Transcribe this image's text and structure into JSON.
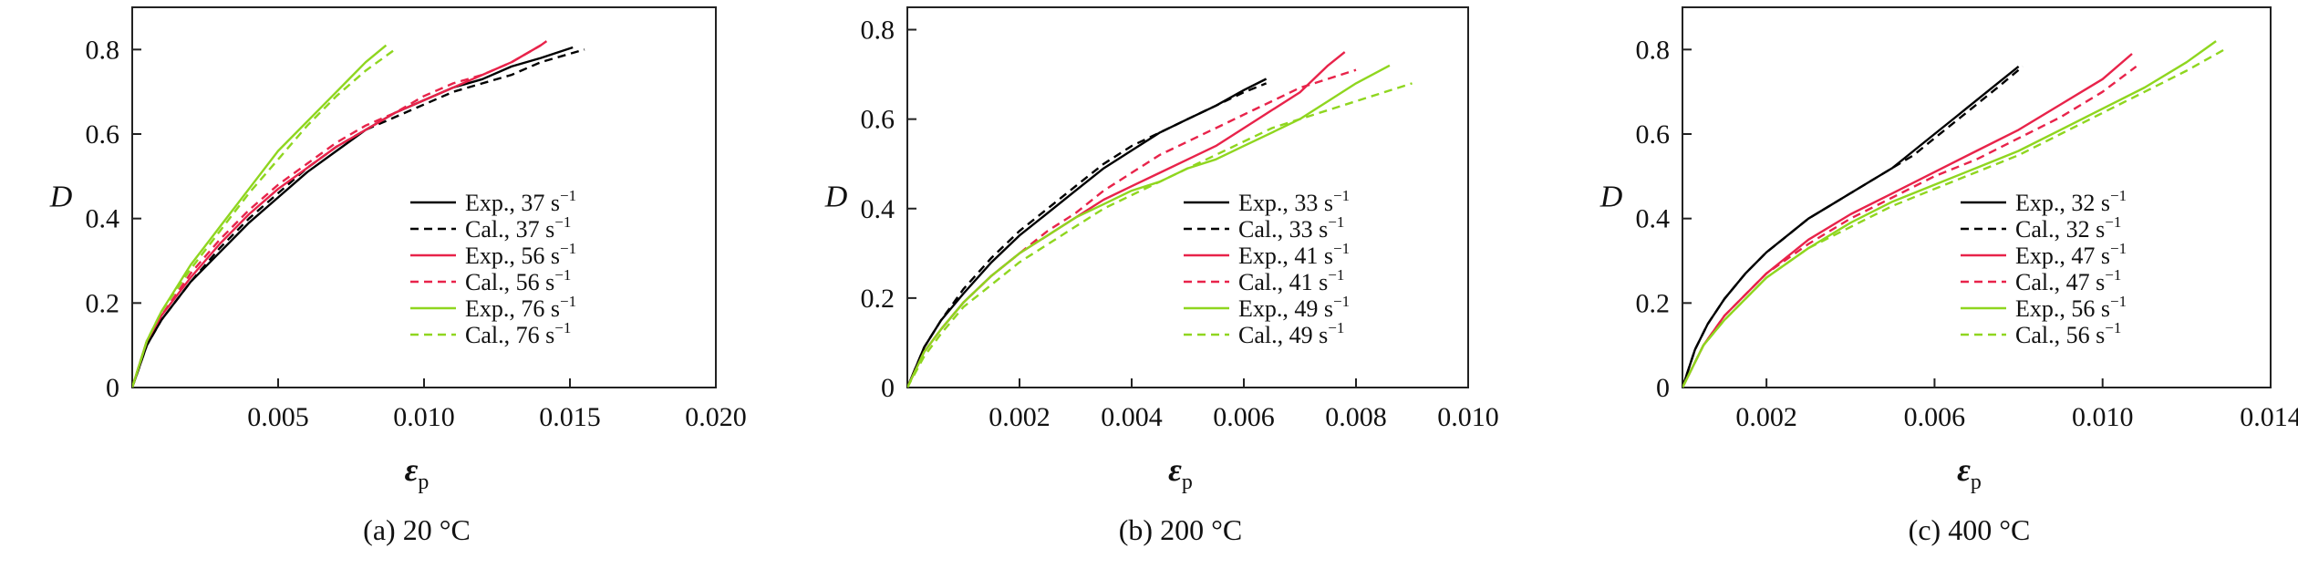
{
  "chart_data": [
    {
      "type": "line",
      "caption": "(a) 20 °C",
      "xlabel_main": "ε",
      "xlabel_sub": "p",
      "ylabel": "D",
      "xlim": [
        0,
        0.02
      ],
      "ylim": [
        0,
        0.9
      ],
      "xticks": [
        0.005,
        0.01,
        0.015,
        0.02
      ],
      "xtick_labels": [
        "0.005",
        "0.010",
        "0.015",
        "0.020"
      ],
      "yticks": [
        0,
        0.2,
        0.4,
        0.6,
        0.8
      ],
      "ytick_labels": [
        "0",
        "0.2",
        "0.4",
        "0.6",
        "0.8"
      ],
      "grid": false,
      "legend_position": "right",
      "series": [
        {
          "name": "Exp., 37 s",
          "sup": "−1",
          "color": "#000000",
          "dashed": false,
          "x": [
            0,
            0.0005,
            0.001,
            0.002,
            0.003,
            0.004,
            0.005,
            0.006,
            0.007,
            0.008,
            0.009,
            0.01,
            0.011,
            0.012,
            0.013,
            0.014,
            0.0151
          ],
          "y": [
            0,
            0.1,
            0.16,
            0.25,
            0.32,
            0.39,
            0.45,
            0.51,
            0.56,
            0.61,
            0.65,
            0.68,
            0.71,
            0.73,
            0.76,
            0.78,
            0.805
          ]
        },
        {
          "name": "Cal., 37 s",
          "sup": "−1",
          "color": "#000000",
          "dashed": true,
          "x": [
            0,
            0.0005,
            0.001,
            0.002,
            0.003,
            0.004,
            0.005,
            0.006,
            0.007,
            0.008,
            0.009,
            0.01,
            0.011,
            0.012,
            0.013,
            0.014,
            0.0155
          ],
          "y": [
            0,
            0.1,
            0.16,
            0.25,
            0.33,
            0.4,
            0.46,
            0.52,
            0.57,
            0.61,
            0.64,
            0.67,
            0.7,
            0.72,
            0.74,
            0.77,
            0.8
          ]
        },
        {
          "name": "Exp., 56 s",
          "sup": "−1",
          "color": "#e8234a",
          "dashed": false,
          "x": [
            0,
            0.0005,
            0.001,
            0.002,
            0.003,
            0.004,
            0.005,
            0.006,
            0.007,
            0.008,
            0.009,
            0.01,
            0.011,
            0.012,
            0.013,
            0.014,
            0.0142
          ],
          "y": [
            0,
            0.11,
            0.17,
            0.26,
            0.34,
            0.41,
            0.47,
            0.52,
            0.57,
            0.61,
            0.65,
            0.68,
            0.71,
            0.74,
            0.77,
            0.81,
            0.82
          ]
        },
        {
          "name": "Cal., 56 s",
          "sup": "−1",
          "color": "#e8234a",
          "dashed": true,
          "x": [
            0,
            0.0005,
            0.001,
            0.002,
            0.003,
            0.004,
            0.005,
            0.006,
            0.007,
            0.008,
            0.009,
            0.01,
            0.011,
            0.012,
            0.013,
            0.014
          ],
          "y": [
            0,
            0.11,
            0.17,
            0.27,
            0.35,
            0.42,
            0.48,
            0.53,
            0.58,
            0.62,
            0.65,
            0.69,
            0.72,
            0.74,
            0.77,
            0.81
          ]
        },
        {
          "name": "Exp., 76 s",
          "sup": "−1",
          "color": "#8fd61f",
          "dashed": false,
          "x": [
            0,
            0.0005,
            0.001,
            0.002,
            0.003,
            0.004,
            0.005,
            0.006,
            0.007,
            0.008,
            0.0087
          ],
          "y": [
            0,
            0.11,
            0.18,
            0.29,
            0.38,
            0.47,
            0.56,
            0.63,
            0.7,
            0.77,
            0.81
          ]
        },
        {
          "name": "Cal., 76 s",
          "sup": "−1",
          "color": "#8fd61f",
          "dashed": true,
          "x": [
            0,
            0.0005,
            0.001,
            0.002,
            0.003,
            0.004,
            0.005,
            0.006,
            0.007,
            0.008,
            0.009
          ],
          "y": [
            0,
            0.11,
            0.18,
            0.28,
            0.37,
            0.46,
            0.54,
            0.62,
            0.69,
            0.75,
            0.8
          ]
        }
      ]
    },
    {
      "type": "line",
      "caption": "(b) 200 °C",
      "xlabel_main": "ε",
      "xlabel_sub": "p",
      "ylabel": "D",
      "xlim": [
        0,
        0.01
      ],
      "ylim": [
        0,
        0.85
      ],
      "xticks": [
        0.002,
        0.004,
        0.006,
        0.008,
        0.01
      ],
      "xtick_labels": [
        "0.002",
        "0.004",
        "0.006",
        "0.008",
        "0.010"
      ],
      "yticks": [
        0,
        0.2,
        0.4,
        0.6,
        0.8
      ],
      "ytick_labels": [
        "0",
        "0.2",
        "0.4",
        "0.6",
        "0.8"
      ],
      "grid": false,
      "legend_position": "right",
      "series": [
        {
          "name": "Exp., 33 s",
          "sup": "−1",
          "color": "#000000",
          "dashed": false,
          "x": [
            0,
            0.0003,
            0.0006,
            0.001,
            0.0015,
            0.002,
            0.0025,
            0.003,
            0.0035,
            0.004,
            0.0045,
            0.005,
            0.0055,
            0.006,
            0.0064
          ],
          "y": [
            0,
            0.09,
            0.15,
            0.21,
            0.28,
            0.34,
            0.39,
            0.44,
            0.49,
            0.53,
            0.57,
            0.6,
            0.63,
            0.665,
            0.69
          ]
        },
        {
          "name": "Cal., 33 s",
          "sup": "−1",
          "color": "#000000",
          "dashed": true,
          "x": [
            0,
            0.0003,
            0.0006,
            0.001,
            0.0015,
            0.002,
            0.0025,
            0.003,
            0.0035,
            0.004,
            0.0045,
            0.005,
            0.0055,
            0.006,
            0.0064
          ],
          "y": [
            0,
            0.09,
            0.15,
            0.22,
            0.29,
            0.35,
            0.4,
            0.45,
            0.5,
            0.54,
            0.57,
            0.6,
            0.63,
            0.66,
            0.68
          ]
        },
        {
          "name": "Exp., 41 s",
          "sup": "−1",
          "color": "#e8234a",
          "dashed": false,
          "x": [
            0,
            0.0003,
            0.0006,
            0.001,
            0.0015,
            0.002,
            0.0025,
            0.003,
            0.0035,
            0.004,
            0.0045,
            0.005,
            0.0055,
            0.006,
            0.0065,
            0.007,
            0.0075,
            0.0078
          ],
          "y": [
            0,
            0.08,
            0.13,
            0.19,
            0.25,
            0.3,
            0.34,
            0.38,
            0.42,
            0.45,
            0.48,
            0.51,
            0.54,
            0.58,
            0.62,
            0.66,
            0.72,
            0.75
          ]
        },
        {
          "name": "Cal., 41 s",
          "sup": "−1",
          "color": "#e8234a",
          "dashed": true,
          "x": [
            0,
            0.0003,
            0.0006,
            0.001,
            0.0015,
            0.002,
            0.0025,
            0.003,
            0.0035,
            0.004,
            0.0045,
            0.005,
            0.0055,
            0.006,
            0.0065,
            0.007,
            0.0075,
            0.008
          ],
          "y": [
            0,
            0.08,
            0.13,
            0.19,
            0.25,
            0.3,
            0.35,
            0.39,
            0.44,
            0.48,
            0.52,
            0.55,
            0.58,
            0.61,
            0.64,
            0.67,
            0.69,
            0.71
          ]
        },
        {
          "name": "Exp., 49 s",
          "sup": "−1",
          "color": "#8fd61f",
          "dashed": false,
          "x": [
            0,
            0.0003,
            0.0006,
            0.001,
            0.0015,
            0.002,
            0.0025,
            0.003,
            0.0035,
            0.004,
            0.0045,
            0.005,
            0.0055,
            0.006,
            0.0065,
            0.007,
            0.0075,
            0.008,
            0.0086
          ],
          "y": [
            0,
            0.08,
            0.13,
            0.19,
            0.25,
            0.3,
            0.34,
            0.38,
            0.41,
            0.44,
            0.46,
            0.49,
            0.51,
            0.54,
            0.57,
            0.6,
            0.64,
            0.68,
            0.72
          ]
        },
        {
          "name": "Cal., 49 s",
          "sup": "−1",
          "color": "#8fd61f",
          "dashed": true,
          "x": [
            0,
            0.0003,
            0.0006,
            0.001,
            0.0015,
            0.002,
            0.0025,
            0.003,
            0.0035,
            0.004,
            0.0045,
            0.005,
            0.0055,
            0.006,
            0.0065,
            0.007,
            0.0075,
            0.008,
            0.0085,
            0.009
          ],
          "y": [
            0,
            0.07,
            0.12,
            0.18,
            0.23,
            0.28,
            0.32,
            0.36,
            0.4,
            0.43,
            0.46,
            0.49,
            0.52,
            0.55,
            0.58,
            0.6,
            0.62,
            0.64,
            0.66,
            0.68
          ]
        }
      ]
    },
    {
      "type": "line",
      "caption": "(c) 400 °C",
      "xlabel_main": "ε",
      "xlabel_sub": "p",
      "ylabel": "D",
      "xlim": [
        0,
        0.014
      ],
      "ylim": [
        0,
        0.9
      ],
      "xticks": [
        0.002,
        0.006,
        0.01,
        0.014
      ],
      "xtick_labels": [
        "0.002",
        "0.006",
        "0.010",
        "0.014"
      ],
      "yticks": [
        0,
        0.2,
        0.4,
        0.6,
        0.8
      ],
      "ytick_labels": [
        "0",
        "0.2",
        "0.4",
        "0.6",
        "0.8"
      ],
      "grid": false,
      "legend_position": "right",
      "series": [
        {
          "name": "Exp., 32 s",
          "sup": "−1",
          "color": "#000000",
          "dashed": false,
          "x": [
            0,
            0.0003,
            0.0006,
            0.001,
            0.0015,
            0.002,
            0.0025,
            0.003,
            0.0035,
            0.004,
            0.0045,
            0.005,
            0.0055,
            0.006,
            0.0065,
            0.007,
            0.0075,
            0.008
          ],
          "y": [
            0,
            0.09,
            0.15,
            0.21,
            0.27,
            0.32,
            0.36,
            0.4,
            0.43,
            0.46,
            0.49,
            0.52,
            0.56,
            0.6,
            0.64,
            0.68,
            0.72,
            0.76
          ]
        },
        {
          "name": "Cal., 32 s",
          "sup": "−1",
          "color": "#000000",
          "dashed": true,
          "x": [
            0,
            0.0003,
            0.0006,
            0.001,
            0.0015,
            0.002,
            0.0025,
            0.003,
            0.0035,
            0.004,
            0.0045,
            0.005,
            0.0055,
            0.006,
            0.0065,
            0.007,
            0.0075,
            0.0081
          ],
          "y": [
            0,
            0.09,
            0.15,
            0.21,
            0.27,
            0.32,
            0.36,
            0.4,
            0.43,
            0.46,
            0.49,
            0.52,
            0.55,
            0.59,
            0.63,
            0.67,
            0.71,
            0.76
          ]
        },
        {
          "name": "Exp., 47 s",
          "sup": "−1",
          "color": "#e8234a",
          "dashed": false,
          "x": [
            0,
            0.0005,
            0.001,
            0.002,
            0.003,
            0.004,
            0.005,
            0.006,
            0.007,
            0.008,
            0.009,
            0.01,
            0.0107
          ],
          "y": [
            0,
            0.1,
            0.17,
            0.27,
            0.35,
            0.41,
            0.46,
            0.51,
            0.56,
            0.61,
            0.67,
            0.73,
            0.79
          ]
        },
        {
          "name": "Cal., 47 s",
          "sup": "−1",
          "color": "#e8234a",
          "dashed": true,
          "x": [
            0,
            0.0005,
            0.001,
            0.002,
            0.003,
            0.004,
            0.005,
            0.006,
            0.007,
            0.008,
            0.009,
            0.01,
            0.0108
          ],
          "y": [
            0,
            0.1,
            0.17,
            0.27,
            0.34,
            0.4,
            0.45,
            0.5,
            0.54,
            0.59,
            0.64,
            0.7,
            0.76
          ]
        },
        {
          "name": "Exp., 56 s",
          "sup": "−1",
          "color": "#8fd61f",
          "dashed": false,
          "x": [
            0,
            0.0005,
            0.001,
            0.002,
            0.003,
            0.004,
            0.005,
            0.006,
            0.007,
            0.008,
            0.009,
            0.01,
            0.011,
            0.012,
            0.0127
          ],
          "y": [
            0,
            0.1,
            0.16,
            0.26,
            0.33,
            0.39,
            0.44,
            0.48,
            0.52,
            0.56,
            0.61,
            0.66,
            0.71,
            0.77,
            0.82
          ]
        },
        {
          "name": "Cal., 56 s",
          "sup": "−1",
          "color": "#8fd61f",
          "dashed": true,
          "x": [
            0,
            0.0005,
            0.001,
            0.002,
            0.003,
            0.004,
            0.005,
            0.006,
            0.007,
            0.008,
            0.009,
            0.01,
            0.011,
            0.012,
            0.0129
          ],
          "y": [
            0,
            0.1,
            0.16,
            0.26,
            0.33,
            0.38,
            0.43,
            0.47,
            0.51,
            0.55,
            0.6,
            0.65,
            0.7,
            0.75,
            0.8
          ]
        }
      ]
    }
  ]
}
